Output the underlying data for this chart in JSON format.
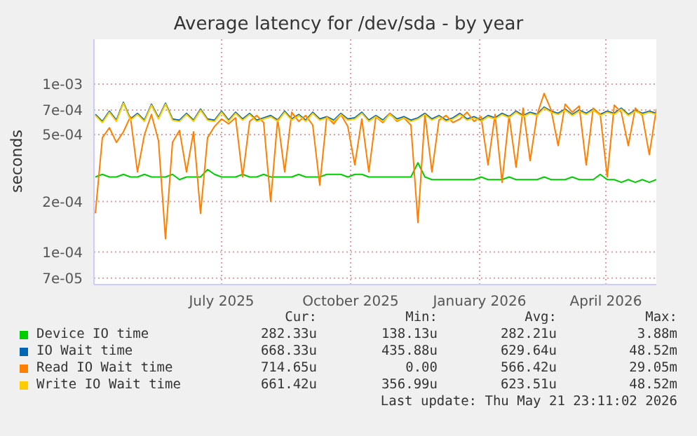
{
  "chart_data": {
    "type": "line",
    "title": "Average latency for /dev/sda - by year",
    "ylabel": "seconds",
    "log": "y",
    "grid": true,
    "legend": "bottom",
    "xlim": [
      "2025-04-15",
      "2026-05-21"
    ],
    "xticks": [
      {
        "value": "2025-07-15",
        "label": "July 2025"
      },
      {
        "value": "2025-10-15",
        "label": "October 2025"
      },
      {
        "value": "2026-01-15",
        "label": "January 2026"
      },
      {
        "value": "2026-04-15",
        "label": "April 2026"
      }
    ],
    "ylim": [
      6.4e-05,
      0.00185
    ],
    "yticks": [
      {
        "value": 7e-05,
        "label": "7e-05"
      },
      {
        "value": 0.0001,
        "label": "1e-04"
      },
      {
        "value": 0.0002,
        "label": "2e-04"
      },
      {
        "value": 0.0005,
        "label": "5e-04"
      },
      {
        "value": 0.0007,
        "label": "7e-04"
      },
      {
        "value": 0.001,
        "label": "1e-03"
      }
    ],
    "x": [
      "2025-04-16",
      "2025-04-21",
      "2025-04-26",
      "2025-05-01",
      "2025-05-06",
      "2025-05-11",
      "2025-05-16",
      "2025-05-21",
      "2025-05-26",
      "2025-05-31",
      "2025-06-05",
      "2025-06-10",
      "2025-06-15",
      "2025-06-20",
      "2025-06-25",
      "2025-06-30",
      "2025-07-05",
      "2025-07-10",
      "2025-07-15",
      "2025-07-20",
      "2025-07-25",
      "2025-07-30",
      "2025-08-04",
      "2025-08-09",
      "2025-08-14",
      "2025-08-19",
      "2025-08-24",
      "2025-08-29",
      "2025-09-03",
      "2025-09-08",
      "2025-09-13",
      "2025-09-18",
      "2025-09-23",
      "2025-09-28",
      "2025-10-03",
      "2025-10-08",
      "2025-10-13",
      "2025-10-18",
      "2025-10-23",
      "2025-10-28",
      "2025-11-02",
      "2025-11-07",
      "2025-11-12",
      "2025-11-17",
      "2025-11-22",
      "2025-11-27",
      "2025-12-02",
      "2025-12-07",
      "2025-12-12",
      "2025-12-17",
      "2025-12-22",
      "2025-12-27",
      "2026-01-01",
      "2026-01-06",
      "2026-01-11",
      "2026-01-16",
      "2026-01-21",
      "2026-01-26",
      "2026-01-31",
      "2026-02-05",
      "2026-02-10",
      "2026-02-15",
      "2026-02-20",
      "2026-02-25",
      "2026-03-02",
      "2026-03-07",
      "2026-03-12",
      "2026-03-17",
      "2026-03-22",
      "2026-03-27",
      "2026-04-01",
      "2026-04-06",
      "2026-04-11",
      "2026-04-16",
      "2026-04-21",
      "2026-04-26",
      "2026-05-01",
      "2026-05-06",
      "2026-05-11",
      "2026-05-16",
      "2026-05-21"
    ],
    "series": [
      {
        "name": "Device IO time",
        "color": "#00cc00",
        "values": [
          0.00028,
          0.00029,
          0.00028,
          0.00028,
          0.00029,
          0.00028,
          0.00028,
          0.00029,
          0.00028,
          0.00028,
          0.00028,
          0.00029,
          0.00027,
          0.00028,
          0.00028,
          0.00028,
          0.00031,
          0.00029,
          0.00028,
          0.00028,
          0.00028,
          0.00029,
          0.00028,
          0.00028,
          0.00029,
          0.00028,
          0.00028,
          0.00028,
          0.00028,
          0.00029,
          0.00028,
          0.00028,
          0.00028,
          0.00029,
          0.00029,
          0.00029,
          0.00028,
          0.00029,
          0.00029,
          0.00028,
          0.00028,
          0.00028,
          0.00028,
          0.00028,
          0.00028,
          0.00028,
          0.00034,
          0.00028,
          0.00027,
          0.00027,
          0.00027,
          0.00027,
          0.00027,
          0.00027,
          0.00027,
          0.00028,
          0.00027,
          0.00027,
          0.00027,
          0.00028,
          0.00027,
          0.00027,
          0.00027,
          0.00027,
          0.00028,
          0.00027,
          0.00027,
          0.00027,
          0.00028,
          0.00027,
          0.00027,
          0.00027,
          0.00029,
          0.00027,
          0.00027,
          0.00026,
          0.00027,
          0.00026,
          0.00027,
          0.00026,
          0.00027
        ]
      },
      {
        "name": "IO Wait time",
        "color": "#0066b3",
        "values": [
          0.00066,
          0.0006,
          0.00069,
          0.00061,
          0.00078,
          0.00062,
          0.00067,
          0.00061,
          0.00076,
          0.00063,
          0.00077,
          0.00062,
          0.00061,
          0.00067,
          0.00061,
          0.00071,
          0.00062,
          0.00061,
          0.00069,
          0.00061,
          0.00068,
          0.00062,
          0.00067,
          0.00061,
          0.00063,
          0.00065,
          0.00061,
          0.00069,
          0.00062,
          0.00066,
          0.00061,
          0.00068,
          0.00062,
          0.00064,
          0.00061,
          0.00067,
          0.00062,
          0.00063,
          0.00068,
          0.00061,
          0.00065,
          0.00061,
          0.00067,
          0.00062,
          0.00064,
          0.00061,
          0.00063,
          0.00067,
          0.00062,
          0.00065,
          0.00061,
          0.00063,
          0.00067,
          0.00062,
          0.00064,
          0.00061,
          0.00065,
          0.00063,
          0.00067,
          0.00064,
          0.00069,
          0.00065,
          0.00068,
          0.00066,
          0.00073,
          0.00069,
          0.00067,
          0.00071,
          0.00066,
          0.0007,
          0.00067,
          0.00071,
          0.00066,
          0.00069,
          0.00067,
          0.00072,
          0.00066,
          0.0007,
          0.00067,
          0.00069,
          0.00067
        ]
      },
      {
        "name": "Read IO Wait time",
        "color": "#ff8000",
        "values": [
          0.00017,
          0.00048,
          0.00055,
          0.00045,
          0.00052,
          0.00064,
          0.0003,
          0.0005,
          0.00066,
          0.00046,
          0.00012,
          0.00045,
          0.00053,
          0.0003,
          0.00052,
          0.00017,
          0.00048,
          0.00056,
          0.00062,
          0.00058,
          0.00063,
          0.00028,
          0.0006,
          0.00065,
          0.00059,
          0.0002,
          0.00062,
          0.0003,
          0.00068,
          0.0006,
          0.00065,
          0.00057,
          0.00025,
          0.00064,
          0.00058,
          0.00066,
          0.00056,
          0.00033,
          0.00062,
          0.0003,
          0.00064,
          0.00059,
          0.00067,
          0.0006,
          0.00063,
          0.00057,
          0.00015,
          0.00066,
          0.0003,
          0.00061,
          0.00065,
          0.00059,
          0.00062,
          0.00068,
          0.0006,
          0.00064,
          0.00033,
          0.00066,
          0.00026,
          0.00065,
          0.00032,
          0.00072,
          0.00035,
          0.00066,
          0.00088,
          0.0007,
          0.00043,
          0.00076,
          0.00068,
          0.00074,
          0.00033,
          0.00072,
          0.00066,
          0.00028,
          0.00075,
          0.00068,
          0.00043,
          0.00072,
          0.00065,
          0.00038,
          0.00071
        ]
      },
      {
        "name": "Write IO Wait time",
        "color": "#ffcc00",
        "values": [
          0.00065,
          0.00059,
          0.00068,
          0.0006,
          0.00077,
          0.00061,
          0.00066,
          0.0006,
          0.00075,
          0.00062,
          0.00076,
          0.00061,
          0.0006,
          0.00066,
          0.0006,
          0.0007,
          0.00061,
          0.0006,
          0.00068,
          0.0006,
          0.00067,
          0.00061,
          0.00066,
          0.0006,
          0.00062,
          0.00064,
          0.0006,
          0.00068,
          0.00061,
          0.00065,
          0.0006,
          0.00067,
          0.00061,
          0.00063,
          0.0006,
          0.00066,
          0.00061,
          0.00062,
          0.00067,
          0.0006,
          0.00064,
          0.0006,
          0.00066,
          0.00061,
          0.00063,
          0.0006,
          0.00062,
          0.00066,
          0.00061,
          0.00064,
          0.0006,
          0.00062,
          0.00066,
          0.00061,
          0.00063,
          0.0006,
          0.00064,
          0.00062,
          0.00066,
          0.00063,
          0.00068,
          0.00064,
          0.00067,
          0.00065,
          0.00072,
          0.00068,
          0.00066,
          0.0007,
          0.00065,
          0.00069,
          0.00066,
          0.0007,
          0.00065,
          0.00068,
          0.00066,
          0.00071,
          0.00065,
          0.00069,
          0.00066,
          0.00068,
          0.00066
        ]
      }
    ],
    "annotations": [
      "Cur:",
      "Min:",
      "Avg:",
      "Max:",
      "282.33u",
      "138.13u",
      "282.21u",
      "3.88m",
      "668.33u",
      "435.88u",
      "629.64u",
      "48.52m",
      "714.65u",
      "0.00",
      "566.42u",
      "29.05m",
      "661.42u",
      "356.99u",
      "623.51u",
      "48.52m",
      "Last update: Thu May 21 23:11:02 2026"
    ]
  }
}
